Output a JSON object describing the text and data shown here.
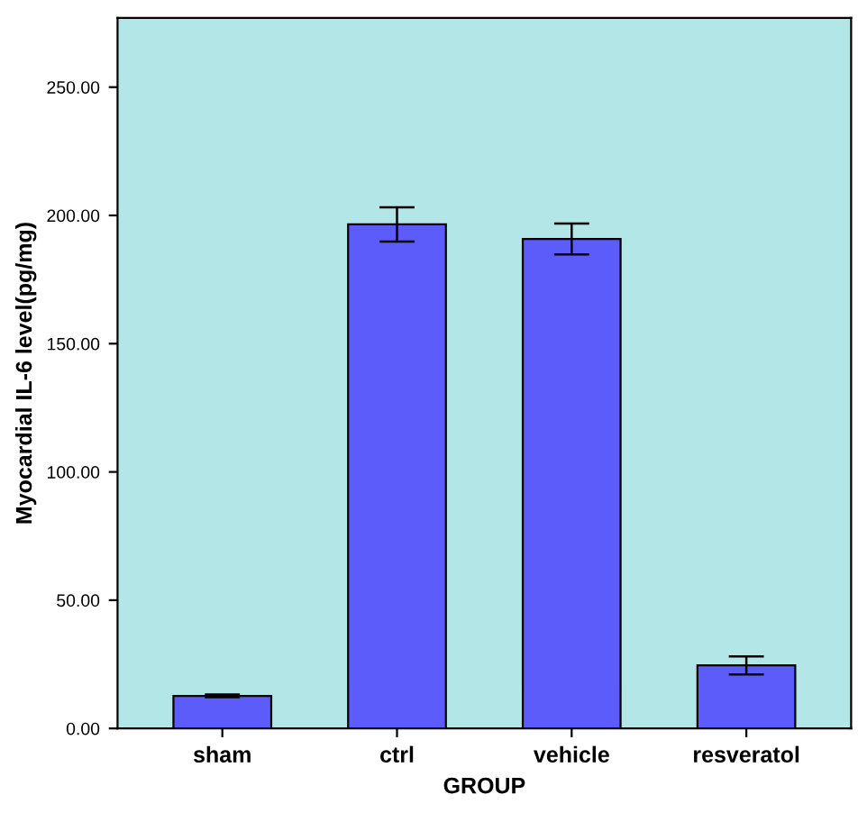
{
  "chart_data": {
    "type": "bar",
    "xlabel": "GROUP",
    "ylabel": "Myocardial IL-6 level(pg/mg)",
    "categories": [
      "sham",
      "ctrl",
      "vehicle",
      "resveratol"
    ],
    "values": [
      12.7,
      196.5,
      190.8,
      24.6
    ],
    "errors": [
      0.5,
      6.7,
      6,
      3.5
    ],
    "color": "#5c5cfa",
    "ylim": [
      0,
      277
    ],
    "yticks": [
      {
        "value": 0,
        "label": "0.00"
      },
      {
        "value": 50,
        "label": "50.00"
      },
      {
        "value": 100,
        "label": "100.00"
      },
      {
        "value": 150,
        "label": "150.00"
      },
      {
        "value": 200,
        "label": "200.00"
      },
      {
        "value": 250,
        "label": "250.00"
      }
    ],
    "grid": false,
    "legend": false
  }
}
